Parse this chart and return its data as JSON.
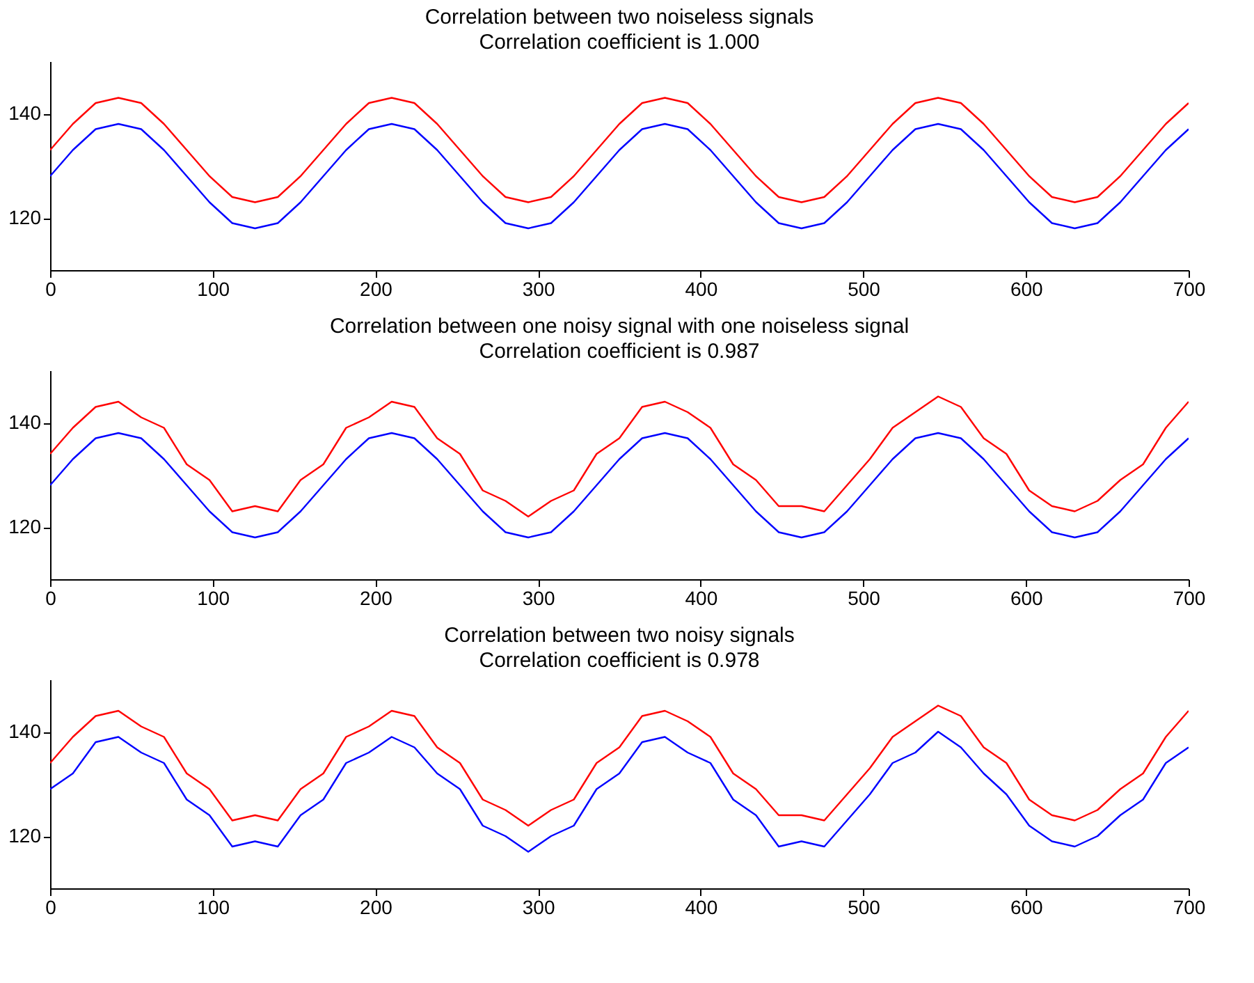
{
  "chart_data": [
    {
      "type": "line",
      "title": "Correlation between two noiseless signals",
      "subtitle": "Correlation coefficient is 1.000",
      "x": [
        0,
        14,
        28,
        42,
        56,
        70,
        84,
        98,
        112,
        126,
        140,
        154,
        168,
        182,
        196,
        210,
        224,
        238,
        252,
        266,
        280,
        294,
        308,
        322,
        336,
        350,
        364,
        378,
        392,
        406,
        420,
        434,
        448,
        462,
        476,
        490,
        504,
        518,
        532,
        546,
        560,
        574,
        588,
        602,
        616,
        630,
        644,
        658,
        672,
        686,
        700
      ],
      "xlim": [
        0,
        700
      ],
      "xticks": [
        0,
        100,
        200,
        300,
        400,
        500,
        600,
        700
      ],
      "ylim": [
        110,
        150
      ],
      "yticks": [
        120,
        140
      ],
      "grid": false,
      "legend": false,
      "marker": "none",
      "line_style": "solid",
      "series": [
        {
          "color": "#ff0000",
          "values": [
            133,
            138,
            142,
            143,
            142,
            138,
            133,
            128,
            124,
            123,
            124,
            128,
            133,
            138,
            142,
            143,
            142,
            138,
            133,
            128,
            124,
            123,
            124,
            128,
            133,
            138,
            142,
            143,
            142,
            138,
            133,
            128,
            124,
            123,
            124,
            128,
            133,
            138,
            142,
            143,
            142,
            138,
            133,
            128,
            124,
            123,
            124,
            128,
            133,
            138,
            142
          ]
        },
        {
          "color": "#0000ff",
          "values": [
            128,
            133,
            137,
            138,
            137,
            133,
            128,
            123,
            119,
            118,
            119,
            123,
            128,
            133,
            137,
            138,
            137,
            133,
            128,
            123,
            119,
            118,
            119,
            123,
            128,
            133,
            137,
            138,
            137,
            133,
            128,
            123,
            119,
            118,
            119,
            123,
            128,
            133,
            137,
            138,
            137,
            133,
            128,
            123,
            119,
            118,
            119,
            123,
            128,
            133,
            137
          ]
        }
      ]
    },
    {
      "type": "line",
      "title": "Correlation between one noisy signal with one noiseless signal",
      "subtitle": "Correlation coefficient is 0.987",
      "x": [
        0,
        14,
        28,
        42,
        56,
        70,
        84,
        98,
        112,
        126,
        140,
        154,
        168,
        182,
        196,
        210,
        224,
        238,
        252,
        266,
        280,
        294,
        308,
        322,
        336,
        350,
        364,
        378,
        392,
        406,
        420,
        434,
        448,
        462,
        476,
        490,
        504,
        518,
        532,
        546,
        560,
        574,
        588,
        602,
        616,
        630,
        644,
        658,
        672,
        686,
        700
      ],
      "xlim": [
        0,
        700
      ],
      "xticks": [
        0,
        100,
        200,
        300,
        400,
        500,
        600,
        700
      ],
      "ylim": [
        110,
        150
      ],
      "yticks": [
        120,
        140
      ],
      "grid": false,
      "legend": false,
      "marker": "none",
      "line_style": "solid",
      "series": [
        {
          "color": "#ff0000",
          "values": [
            134,
            139,
            143,
            144,
            141,
            139,
            132,
            129,
            123,
            124,
            123,
            129,
            132,
            139,
            141,
            144,
            143,
            137,
            134,
            127,
            125,
            122,
            125,
            127,
            134,
            137,
            143,
            144,
            142,
            139,
            132,
            129,
            124,
            124,
            123,
            128,
            133,
            139,
            142,
            145,
            143,
            137,
            134,
            127,
            124,
            123,
            125,
            129,
            132,
            139,
            144
          ]
        },
        {
          "color": "#0000ff",
          "values": [
            128,
            133,
            137,
            138,
            137,
            133,
            128,
            123,
            119,
            118,
            119,
            123,
            128,
            133,
            137,
            138,
            137,
            133,
            128,
            123,
            119,
            118,
            119,
            123,
            128,
            133,
            137,
            138,
            137,
            133,
            128,
            123,
            119,
            118,
            119,
            123,
            128,
            133,
            137,
            138,
            137,
            133,
            128,
            123,
            119,
            118,
            119,
            123,
            128,
            133,
            137
          ]
        }
      ]
    },
    {
      "type": "line",
      "title": "Correlation between two noisy signals",
      "subtitle": "Correlation coefficient is 0.978",
      "x": [
        0,
        14,
        28,
        42,
        56,
        70,
        84,
        98,
        112,
        126,
        140,
        154,
        168,
        182,
        196,
        210,
        224,
        238,
        252,
        266,
        280,
        294,
        308,
        322,
        336,
        350,
        364,
        378,
        392,
        406,
        420,
        434,
        448,
        462,
        476,
        490,
        504,
        518,
        532,
        546,
        560,
        574,
        588,
        602,
        616,
        630,
        644,
        658,
        672,
        686,
        700
      ],
      "xlim": [
        0,
        700
      ],
      "xticks": [
        0,
        100,
        200,
        300,
        400,
        500,
        600,
        700
      ],
      "ylim": [
        110,
        150
      ],
      "yticks": [
        120,
        140
      ],
      "grid": false,
      "legend": false,
      "marker": "none",
      "line_style": "solid",
      "series": [
        {
          "color": "#ff0000",
          "values": [
            134,
            139,
            143,
            144,
            141,
            139,
            132,
            129,
            123,
            124,
            123,
            129,
            132,
            139,
            141,
            144,
            143,
            137,
            134,
            127,
            125,
            122,
            125,
            127,
            134,
            137,
            143,
            144,
            142,
            139,
            132,
            129,
            124,
            124,
            123,
            128,
            133,
            139,
            142,
            145,
            143,
            137,
            134,
            127,
            124,
            123,
            125,
            129,
            132,
            139,
            144
          ]
        },
        {
          "color": "#0000ff",
          "values": [
            129,
            132,
            138,
            139,
            136,
            134,
            127,
            124,
            118,
            119,
            118,
            124,
            127,
            134,
            136,
            139,
            137,
            132,
            129,
            122,
            120,
            117,
            120,
            122,
            129,
            132,
            138,
            139,
            136,
            134,
            127,
            124,
            118,
            119,
            118,
            123,
            128,
            134,
            136,
            140,
            137,
            132,
            128,
            122,
            119,
            118,
            120,
            124,
            127,
            134,
            137
          ]
        }
      ]
    }
  ]
}
